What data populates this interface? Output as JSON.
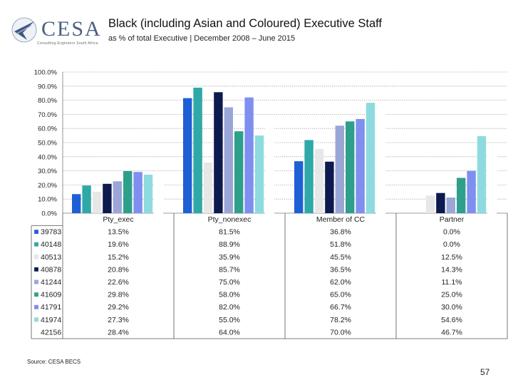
{
  "header": {
    "title": "Black (including Asian and Coloured) Executive Staff",
    "subtitle": "as % of total Executive | December 2008 – June 2015",
    "logo_text": "CESA",
    "logo_tagline": "Consulting Engineers South Africa"
  },
  "footer": {
    "source": "Source: CESA BECS",
    "page_number": "57"
  },
  "chart_data": {
    "type": "bar",
    "title": "Black (including Asian and Coloured) Executive Staff",
    "ylim": [
      0,
      100
    ],
    "yticks": [
      "0.0%",
      "10.0%",
      "20.0%",
      "30.0%",
      "40.0%",
      "50.0%",
      "60.0%",
      "70.0%",
      "80.0%",
      "90.0%",
      "100.0%"
    ],
    "grid": true,
    "categories": [
      "Pty_exec",
      "Pty_nonexec",
      "Member of CC",
      "Partner"
    ],
    "series": [
      {
        "name": "39783",
        "color": "#1f5fd6",
        "values": [
          13.5,
          81.5,
          36.8,
          0.0
        ],
        "labels": [
          "13.5%",
          "81.5%",
          "36.8%",
          "0.0%"
        ]
      },
      {
        "name": "40148",
        "color": "#2fa8a8",
        "values": [
          19.6,
          88.9,
          51.8,
          0.0
        ],
        "labels": [
          "19.6%",
          "88.9%",
          "51.8%",
          "0.0%"
        ]
      },
      {
        "name": "40513",
        "color": "#e7e7e7",
        "values": [
          15.2,
          35.9,
          45.5,
          12.5
        ],
        "labels": [
          "15.2%",
          "35.9%",
          "45.5%",
          "12.5%"
        ]
      },
      {
        "name": "40878",
        "color": "#0c1a4f",
        "values": [
          20.8,
          85.7,
          36.5,
          14.3
        ],
        "labels": [
          "20.8%",
          "85.7%",
          "36.5%",
          "14.3%"
        ]
      },
      {
        "name": "41244",
        "color": "#9aa6d8",
        "values": [
          22.6,
          75.0,
          62.0,
          11.1
        ],
        "labels": [
          "22.6%",
          "75.0%",
          "62.0%",
          "11.1%"
        ]
      },
      {
        "name": "41609",
        "color": "#2e9f8a",
        "values": [
          29.8,
          58.0,
          65.0,
          25.0
        ],
        "labels": [
          "29.8%",
          "58.0%",
          "65.0%",
          "25.0%"
        ]
      },
      {
        "name": "41791",
        "color": "#7e8ff0",
        "values": [
          29.2,
          82.0,
          66.7,
          30.0
        ],
        "labels": [
          "29.2%",
          "82.0%",
          "66.7%",
          "30.0%"
        ]
      },
      {
        "name": "41974",
        "color": "#8edbdf",
        "values": [
          27.3,
          55.0,
          78.2,
          54.6
        ],
        "labels": [
          "27.3%",
          "55.0%",
          "78.2%",
          "54.6%"
        ]
      },
      {
        "name": "42156",
        "color": "#ffffff",
        "values": [
          28.4,
          64.0,
          70.0,
          46.7
        ],
        "labels": [
          "28.4%",
          "64.0%",
          "70.0%",
          "46.7%"
        ]
      }
    ]
  }
}
